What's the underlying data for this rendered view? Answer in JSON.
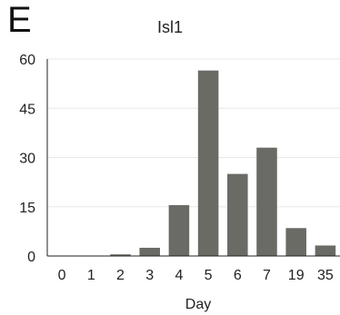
{
  "panel_label": "E",
  "chart_data": {
    "type": "bar",
    "title": "Isl1",
    "xlabel": "Day",
    "ylabel": "",
    "categories": [
      "0",
      "1",
      "2",
      "3",
      "4",
      "5",
      "6",
      "7",
      "19",
      "35"
    ],
    "values": [
      0,
      0,
      0.5,
      2.5,
      15.5,
      56.5,
      25,
      33,
      8.5,
      3.2
    ],
    "ylim": [
      0,
      60
    ],
    "yticks": [
      0,
      15,
      30,
      45,
      60
    ],
    "bar_color": "#6b6b66",
    "grid": true,
    "grid_color": "#e8e8e8",
    "axis_color": "#222222"
  }
}
